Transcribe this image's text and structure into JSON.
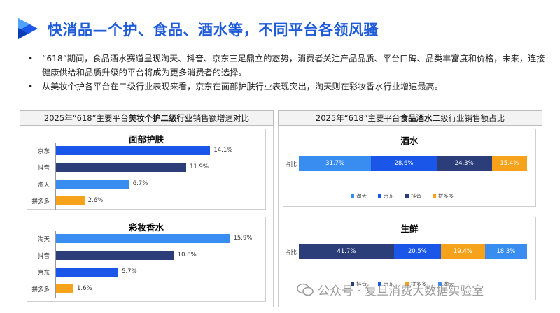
{
  "header": {
    "title": "快消品—个护、食品、酒水等，不同平台各领风骚"
  },
  "bullets": [
    "“618”期间，食品酒水赛道呈现淘天、抖音、京东三足鼎立的态势，消费者关注产品品质、平台口碑、品类丰富度和价格，未来，连接健康供给和品质升级的平台将成为更多消费者的选择。",
    "从美妆个护各平台在二级行业表现来看，京东在面部护肤行业表现突出，淘天则在彩妆香水行业增速最高。"
  ],
  "left_panel": {
    "title_pre": "2025年“618”主要平台",
    "title_bold": "美妆个护二级行业",
    "title_post": "销售额增速对比"
  },
  "right_panel": {
    "title_pre": "2025年“618”主要平台",
    "title_bold": "食品酒水",
    "title_post": "二级行业销售额占比"
  },
  "colors": {
    "jingdong": "#1A56E8",
    "douyin": "#2B3E7A",
    "taotian": "#3A8DF0",
    "pinduoduo": "#F7A21B"
  },
  "chart_data": [
    {
      "type": "bar",
      "orientation": "horizontal",
      "title": "面部护肤",
      "categories": [
        "京东",
        "抖音",
        "淘天",
        "拼多多"
      ],
      "values": [
        14.1,
        11.9,
        6.7,
        2.6
      ],
      "labels": [
        "14.1%",
        "11.9%",
        "6.7%",
        "2.6%"
      ],
      "colors": [
        "#1A56E8",
        "#2B3E7A",
        "#3A8DF0",
        "#F7A21B"
      ],
      "xlim": [
        0,
        16
      ]
    },
    {
      "type": "bar",
      "orientation": "horizontal",
      "title": "彩妆香水",
      "categories": [
        "淘天",
        "抖音",
        "京东",
        "拼多多"
      ],
      "values": [
        15.9,
        10.8,
        5.7,
        1.6
      ],
      "labels": [
        "15.9%",
        "10.8%",
        "5.7%",
        "1.6%"
      ],
      "colors": [
        "#3A8DF0",
        "#2B3E7A",
        "#1A56E8",
        "#F7A21B"
      ],
      "xlim": [
        0,
        16
      ]
    },
    {
      "type": "bar",
      "stacked": "percent",
      "title": "酒水",
      "categories": [
        "占比"
      ],
      "series": [
        {
          "name": "淘天",
          "values": [
            31.7
          ],
          "label": "31.7%",
          "color": "#3A8DF0"
        },
        {
          "name": "京东",
          "values": [
            28.6
          ],
          "label": "28.6%",
          "color": "#1A56E8"
        },
        {
          "name": "抖音",
          "values": [
            24.3
          ],
          "label": "24.3%",
          "color": "#2B3E7A"
        },
        {
          "name": "拼多多",
          "values": [
            15.4
          ],
          "label": "15.4%",
          "color": "#F7A21B"
        }
      ],
      "legend": "bottom"
    },
    {
      "type": "bar",
      "stacked": "percent",
      "title": "生鲜",
      "categories": [
        "占比"
      ],
      "series": [
        {
          "name": "抖音",
          "values": [
            41.7
          ],
          "label": "41.7%",
          "color": "#2B3E7A"
        },
        {
          "name": "京东",
          "values": [
            20.5
          ],
          "label": "20.5%",
          "color": "#1A56E8"
        },
        {
          "name": "拼多多",
          "values": [
            19.4
          ],
          "label": "19.4%",
          "color": "#F7A21B"
        },
        {
          "name": "淘天",
          "values": [
            18.3
          ],
          "label": "18.3%",
          "color": "#3A8DF0"
        }
      ],
      "legend": "bottom"
    }
  ],
  "watermark": {
    "text": "公众号 · 复旦消费大数据实验室"
  }
}
